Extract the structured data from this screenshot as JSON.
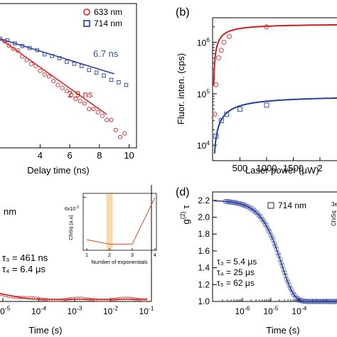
{
  "colors": {
    "red": "#d63a3a",
    "blue": "#3a4fa8",
    "fit_red": "#cc1f1f",
    "fit_blue": "#25409a",
    "highlight": "#f7dcaa",
    "inset_line": "#d24b2b"
  },
  "panel_labels": {
    "b": "(b)",
    "d": "(d)"
  },
  "chart_data": [
    {
      "panel": "a",
      "type": "scatter",
      "xlabel": "Delay time (ns)",
      "x_ticks": [
        "4",
        "6",
        "8",
        "10"
      ],
      "xlim": [
        1.2,
        10.5
      ],
      "y_scale": "log",
      "legend": {
        "placement": "top-right",
        "entries": [
          "633 nm",
          "714 nm"
        ]
      },
      "annotations": [
        "6.7 ns",
        "2.9 ns"
      ],
      "series": [
        {
          "name": "633 nm",
          "marker": "circle",
          "color": "red",
          "x": [
            1.3,
            1.6,
            1.9,
            2.2,
            2.5,
            2.8,
            3.1,
            3.4,
            3.7,
            4.0,
            4.3,
            4.6,
            4.9,
            5.2,
            5.5,
            5.8,
            6.1,
            6.4,
            6.7,
            7.0,
            7.3,
            7.6,
            7.9,
            8.2,
            8.5,
            8.8,
            9.1,
            9.4,
            9.7
          ],
          "y": [
            1.0,
            0.92,
            0.8,
            0.72,
            0.68,
            0.56,
            0.5,
            0.44,
            0.41,
            0.35,
            0.31,
            0.29,
            0.25,
            0.22,
            0.2,
            0.18,
            0.16,
            0.14,
            0.13,
            0.12,
            0.1,
            0.1,
            0.09,
            0.08,
            0.07,
            0.07,
            0.05,
            0.04,
            0.045
          ]
        },
        {
          "name": "714 nm",
          "marker": "square",
          "color": "blue",
          "x": [
            1.3,
            1.8,
            2.3,
            2.8,
            3.3,
            3.8,
            4.3,
            4.8,
            5.3,
            5.8,
            6.3,
            6.8,
            7.3,
            7.8,
            8.3,
            8.8,
            9.3,
            9.8
          ],
          "y": [
            1.0,
            0.95,
            0.86,
            0.79,
            0.74,
            0.69,
            0.6,
            0.57,
            0.53,
            0.47,
            0.44,
            0.41,
            0.36,
            0.33,
            0.3,
            0.26,
            0.24,
            0.22
          ]
        }
      ],
      "fits": [
        {
          "series": "633 nm",
          "tau_ns": 2.9,
          "x_range": [
            1.3,
            8.5
          ]
        },
        {
          "series": "714 nm",
          "tau_ns": 6.7,
          "x_range": [
            1.3,
            9.0
          ]
        }
      ]
    },
    {
      "panel": "b",
      "type": "scatter",
      "xlabel": "Laser power (μW)",
      "ylabel": "Fluor. inten. (cps)",
      "x_ticks": [
        "500",
        "1000",
        "1500",
        "2"
      ],
      "xlim": [
        0,
        2400
      ],
      "y_scale": "log",
      "ylim": [
        5000,
        3000000
      ],
      "y_ticks": [
        {
          "base": "10",
          "exp": "4"
        },
        {
          "base": "10",
          "exp": "5"
        },
        {
          "base": "10",
          "exp": "6"
        }
      ],
      "series": [
        {
          "marker": "circle",
          "color": "red",
          "x": [
            25,
            50,
            100,
            150,
            200,
            300,
            1000
          ],
          "y": [
            40000,
            150000,
            500000,
            700000,
            1000000,
            1300000,
            2000000
          ]
        },
        {
          "marker": "square",
          "color": "blue",
          "x": [
            50,
            150,
            250,
            500,
            1000,
            2400
          ],
          "y": [
            15000,
            30000,
            40000,
            50000,
            60000,
            80000
          ]
        }
      ],
      "fits": [
        {
          "color": "red",
          "isat_uW": 120,
          "imax_cps": 2300000
        },
        {
          "color": "blue",
          "isat_uW": 300,
          "imax_cps": 93000
        }
      ]
    },
    {
      "panel": "c",
      "type": "line",
      "xlabel": "Time (s)",
      "x_scale": "log",
      "x_ticks": [
        {
          "exp": "-5"
        },
        {
          "exp": "-4"
        },
        {
          "exp": "-3"
        },
        {
          "exp": "-2"
        },
        {
          "exp": "-1"
        }
      ],
      "fragments": [
        "nm",
        "τ₃ = 461 ns",
        "τ₄ = 6.4 μs"
      ],
      "inset": {
        "ylabel": "ChiSq (a.u)",
        "xlabel": "Number of exponentials",
        "y_top_label": "6x10",
        "y_top_exp": "-3",
        "x_ticks": [
          "1",
          "2",
          "3",
          "4"
        ],
        "x": [
          1,
          2,
          3,
          4
        ],
        "y": [
          0.0012,
          0.0007,
          0.0007,
          0.006
        ],
        "highlight_x": 2
      }
    },
    {
      "panel": "d",
      "type": "line",
      "ylabel_prefix": "g",
      "ylabel_sup": "(2)",
      "ylabel_suffix": "τ",
      "xlabel": "Time (s)",
      "x_scale": "log",
      "xlim": [
        1e-07,
        0.003
      ],
      "ylim": [
        1.0,
        2.3
      ],
      "y_ticks": [
        "1.0",
        "1.2",
        "1.4",
        "1.6",
        "1.8",
        "2.0",
        "2.2"
      ],
      "x_ticks": [
        {
          "exp": "-6"
        },
        {
          "exp": "-5"
        },
        {
          "exp": "-4"
        }
      ],
      "legend": {
        "placement": "top-right",
        "entries": [
          "714 nm"
        ]
      },
      "annotations": [
        "τ₃ = 5.4 μs",
        "τ₄ = 25 μs",
        "τ₅ = 62 μs"
      ],
      "curve": {
        "plateau": 2.2,
        "baseline": 1.0,
        "tau_s": 2.4e-05
      },
      "right_cut": [
        "3e",
        "ChiSq"
      ]
    }
  ]
}
